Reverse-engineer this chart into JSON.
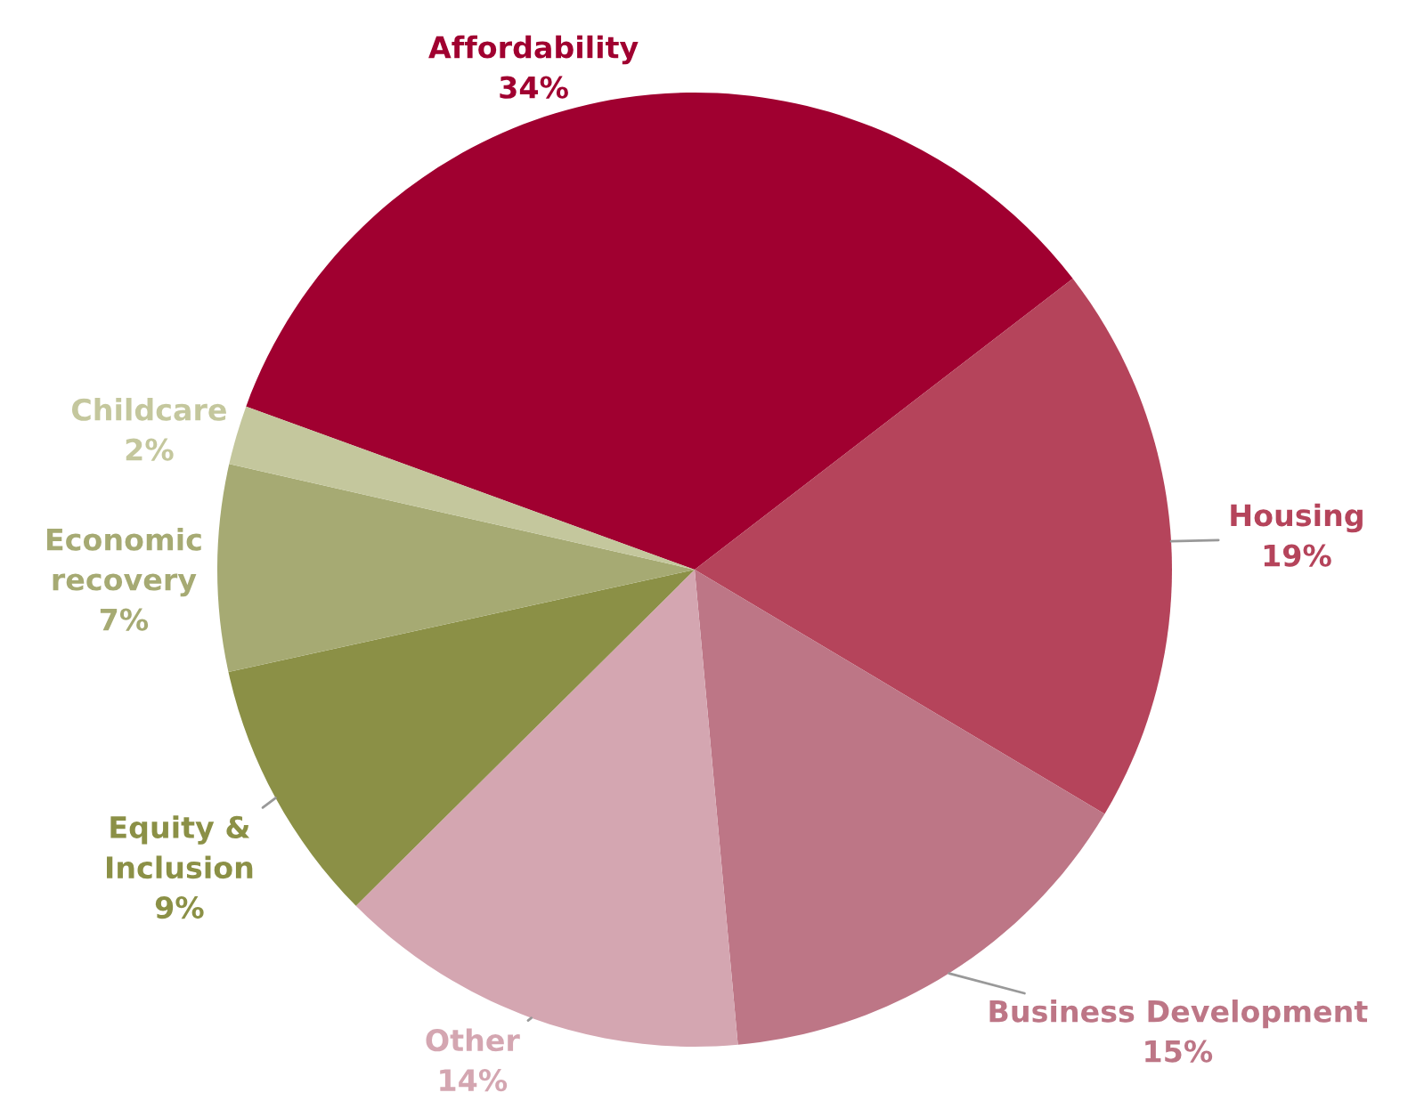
{
  "chart_data": {
    "type": "pie",
    "categories": [
      "Affordability",
      "Housing",
      "Business Development",
      "Other",
      "Equity &\nInclusion",
      "Economic\nrecovery",
      "Childcare"
    ],
    "values": [
      34,
      19,
      15,
      14,
      9,
      7,
      2
    ],
    "value_labels": [
      "34%",
      "19%",
      "15%",
      "14%",
      "9%",
      "7%",
      "2%"
    ],
    "colors": [
      "#a00030",
      "#b5445b",
      "#bd7686",
      "#d4a6b1",
      "#8b9046",
      "#a6aa73",
      "#c4c79d"
    ],
    "legend": false
  }
}
